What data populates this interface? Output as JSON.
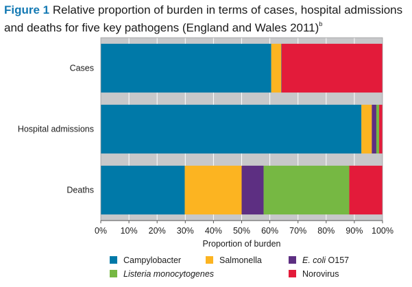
{
  "title": {
    "figure_label": "Figure 1",
    "text": "Relative proportion of burden in terms of cases, hospital admissions and deaths for five key pathogens (England and Wales 2011)",
    "superscript": "b"
  },
  "chart_data": {
    "type": "bar",
    "orientation": "horizontal",
    "stacked": true,
    "categories": [
      "Cases",
      "Hospital admissions",
      "Deaths"
    ],
    "series": [
      {
        "name": "Campylobacter",
        "color": "#0079a8",
        "values": [
          60.5,
          92.5,
          29.8
        ]
      },
      {
        "name": "Salmonella",
        "color": "#fcb421",
        "values": [
          3.5,
          3.7,
          20.2
        ]
      },
      {
        "name": "E. coli O157",
        "color": "#5d2f82",
        "values": [
          0.1,
          1.6,
          7.8
        ]
      },
      {
        "name": "Listeria monocytogenes",
        "color": "#76b843",
        "values": [
          0.1,
          1.0,
          30.4
        ]
      },
      {
        "name": "Norovirus",
        "color": "#e31b3a",
        "values": [
          35.8,
          1.2,
          11.8
        ]
      }
    ],
    "xlabel": "Proportion of burden",
    "ylabel": "",
    "xlim": [
      0,
      100
    ],
    "xticks": [
      0,
      10,
      20,
      30,
      40,
      50,
      60,
      70,
      80,
      90,
      100
    ],
    "tick_labels": [
      "0%",
      "10%",
      "20%",
      "30%",
      "40%",
      "50%",
      "60%",
      "70%",
      "80%",
      "90%",
      "100%"
    ],
    "grid": true,
    "plot_background": "#c7c8ca",
    "legend_position": "bottom"
  },
  "legend": {
    "items": [
      {
        "label": "Campylobacter",
        "color": "#0079a8",
        "italic_part": "",
        "rest": ""
      },
      {
        "label": "Salmonella",
        "color": "#fcb421",
        "italic_part": "",
        "rest": ""
      },
      {
        "label": "",
        "color": "#5d2f82",
        "italic_part": "E. coli",
        "rest": " O157"
      },
      {
        "label": "",
        "color": "#76b843",
        "italic_part": "Listeria monocytogenes",
        "rest": ""
      },
      {
        "label": "Norovirus",
        "color": "#e31b3a",
        "italic_part": "",
        "rest": ""
      }
    ]
  }
}
